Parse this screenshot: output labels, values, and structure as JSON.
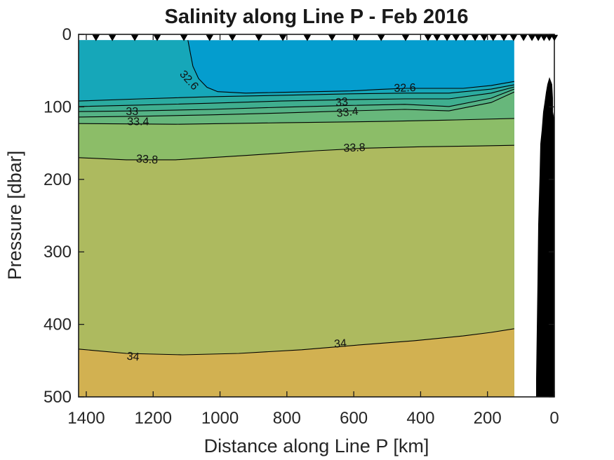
{
  "title": "Salinity along Line P - Feb 2016",
  "x_axis": {
    "label": "Distance along Line P [km]",
    "ticks": [
      1400,
      1200,
      1000,
      800,
      600,
      400,
      200,
      0
    ],
    "range_km": [
      1423,
      0
    ],
    "reversed": true
  },
  "y_axis": {
    "label": "Pressure [dbar]",
    "ticks": [
      0,
      100,
      200,
      300,
      400,
      500
    ],
    "range_dbar": [
      0,
      500
    ],
    "increases_downward": true
  },
  "colors": {
    "axis": "#1a1a1a",
    "text": "#262626",
    "contour_line": "#000000",
    "station_marker": "#000000",
    "land": "#000000",
    "background": "#ffffff"
  },
  "chart_data": {
    "type": "filled-contour",
    "title": "Salinity along Line P - Feb 2016",
    "xlabel": "Distance along Line P [km]",
    "ylabel": "Pressure [dbar]",
    "xlim_km": [
      1423,
      0
    ],
    "ylim_dbar": [
      0,
      500
    ],
    "grid": false,
    "legend": "none",
    "contour_levels": [
      32.6,
      32.8,
      33,
      33.2,
      33.4,
      33.6,
      33.8,
      34
    ],
    "band_colors": [
      "#049dce",
      "#16a7b9",
      "#2baba0",
      "#3fae8f",
      "#54b285",
      "#67b77b",
      "#8cbd68",
      "#adba5f",
      "#d2b151"
    ],
    "fill_extent": {
      "km": [
        1423,
        120
      ],
      "dbar": [
        8,
        500
      ]
    },
    "contour_lines": [
      {
        "level": "32.6",
        "points": [
          [
            1096,
            8
          ],
          [
            1089,
            25
          ],
          [
            1081,
            44
          ],
          [
            1064,
            61
          ],
          [
            1039,
            73
          ],
          [
            1007,
            79
          ],
          [
            923,
            81
          ],
          [
            819,
            80
          ],
          [
            714,
            79
          ],
          [
            609,
            78
          ],
          [
            525,
            76
          ],
          [
            447,
            74.5
          ],
          [
            357,
            74.5
          ],
          [
            273,
            74.5
          ],
          [
            189,
            70.5
          ],
          [
            120,
            65
          ]
        ]
      },
      {
        "level": "32.8",
        "points": [
          [
            1423,
            92
          ],
          [
            1238,
            89
          ],
          [
            1028,
            86
          ],
          [
            818,
            84
          ],
          [
            609,
            82
          ],
          [
            447,
            81
          ],
          [
            315,
            81
          ],
          [
            189,
            75.5
          ],
          [
            120,
            69.5
          ]
        ]
      },
      {
        "level": "33",
        "points": [
          [
            1423,
            99.5
          ],
          [
            1238,
            97.5
          ],
          [
            1028,
            95
          ],
          [
            818,
            92
          ],
          [
            609,
            90
          ],
          [
            447,
            89
          ],
          [
            315,
            89
          ],
          [
            189,
            81
          ],
          [
            120,
            72.5
          ]
        ]
      },
      {
        "level": "33.2",
        "points": [
          [
            1423,
            106.5
          ],
          [
            1238,
            105.5
          ],
          [
            1028,
            103.5
          ],
          [
            818,
            100.5
          ],
          [
            609,
            98
          ],
          [
            447,
            96.5
          ],
          [
            315,
            99.5
          ],
          [
            189,
            88
          ],
          [
            120,
            75.5
          ]
        ]
      },
      {
        "level": "33.4",
        "points": [
          [
            1423,
            114
          ],
          [
            1238,
            113
          ],
          [
            1028,
            111
          ],
          [
            818,
            108.5
          ],
          [
            609,
            105.5
          ],
          [
            447,
            103.5
          ],
          [
            315,
            105.5
          ],
          [
            189,
            94
          ],
          [
            120,
            79.5
          ]
        ]
      },
      {
        "level": "33.6",
        "points": [
          [
            1423,
            123
          ],
          [
            1133,
            124
          ],
          [
            818,
            122
          ],
          [
            504,
            120
          ],
          [
            294,
            118
          ],
          [
            120,
            116
          ]
        ]
      },
      {
        "level": "33.8",
        "points": [
          [
            1423,
            170
          ],
          [
            1280,
            173
          ],
          [
            1133,
            173
          ],
          [
            923,
            167
          ],
          [
            713,
            160.5
          ],
          [
            566,
            157
          ],
          [
            399,
            155
          ],
          [
            231,
            154
          ],
          [
            120,
            153
          ]
        ]
      },
      {
        "level": "34",
        "points": [
          [
            1423,
            434
          ],
          [
            1280,
            440
          ],
          [
            1112,
            442
          ],
          [
            944,
            440
          ],
          [
            756,
            435
          ],
          [
            588,
            428.5
          ],
          [
            420,
            422.5
          ],
          [
            273,
            416
          ],
          [
            189,
            411
          ],
          [
            120,
            406
          ]
        ]
      }
    ],
    "contour_labels": [
      {
        "text": "32.6",
        "km": 1092,
        "dbar": 63,
        "rot": 48
      },
      {
        "text": "32.6",
        "km": 447,
        "dbar": 73.5,
        "rot": -2
      },
      {
        "text": "33",
        "km": 1263,
        "dbar": 106,
        "rot": 0
      },
      {
        "text": "33",
        "km": 636,
        "dbar": 93,
        "rot": -6
      },
      {
        "text": "33.4",
        "km": 1245,
        "dbar": 120,
        "rot": 0
      },
      {
        "text": "33.4",
        "km": 619,
        "dbar": 107,
        "rot": -6
      },
      {
        "text": "33.8",
        "km": 1218,
        "dbar": 172,
        "rot": 4
      },
      {
        "text": "33.8",
        "km": 598,
        "dbar": 156,
        "rot": -2
      },
      {
        "text": "34",
        "km": 1260,
        "dbar": 444,
        "rot": 6
      },
      {
        "text": "34",
        "km": 640,
        "dbar": 426,
        "rot": -5
      }
    ],
    "station_markers_km": [
      1371,
      1322,
      1255,
      1188,
      1108,
      1031,
      963,
      884,
      812,
      739,
      665,
      592,
      518,
      445,
      378,
      351,
      321,
      294,
      267,
      237,
      210,
      183,
      151,
      122,
      92,
      67,
      48,
      31,
      15,
      0
    ],
    "land_polygon_km_dbar": [
      [
        14.7,
        59
      ],
      [
        6.5,
        69
      ],
      [
        4.2,
        88
      ],
      [
        4.2,
        107
      ],
      [
        0,
        117
      ],
      [
        0,
        500
      ],
      [
        54.6,
        500
      ],
      [
        54.6,
        475
      ],
      [
        52.5,
        407
      ],
      [
        50.4,
        340
      ],
      [
        48.3,
        262
      ],
      [
        44,
        194
      ],
      [
        42,
        151
      ],
      [
        37.8,
        132
      ],
      [
        33.6,
        107
      ],
      [
        29.4,
        94
      ],
      [
        25.2,
        80
      ],
      [
        21,
        69
      ]
    ]
  }
}
